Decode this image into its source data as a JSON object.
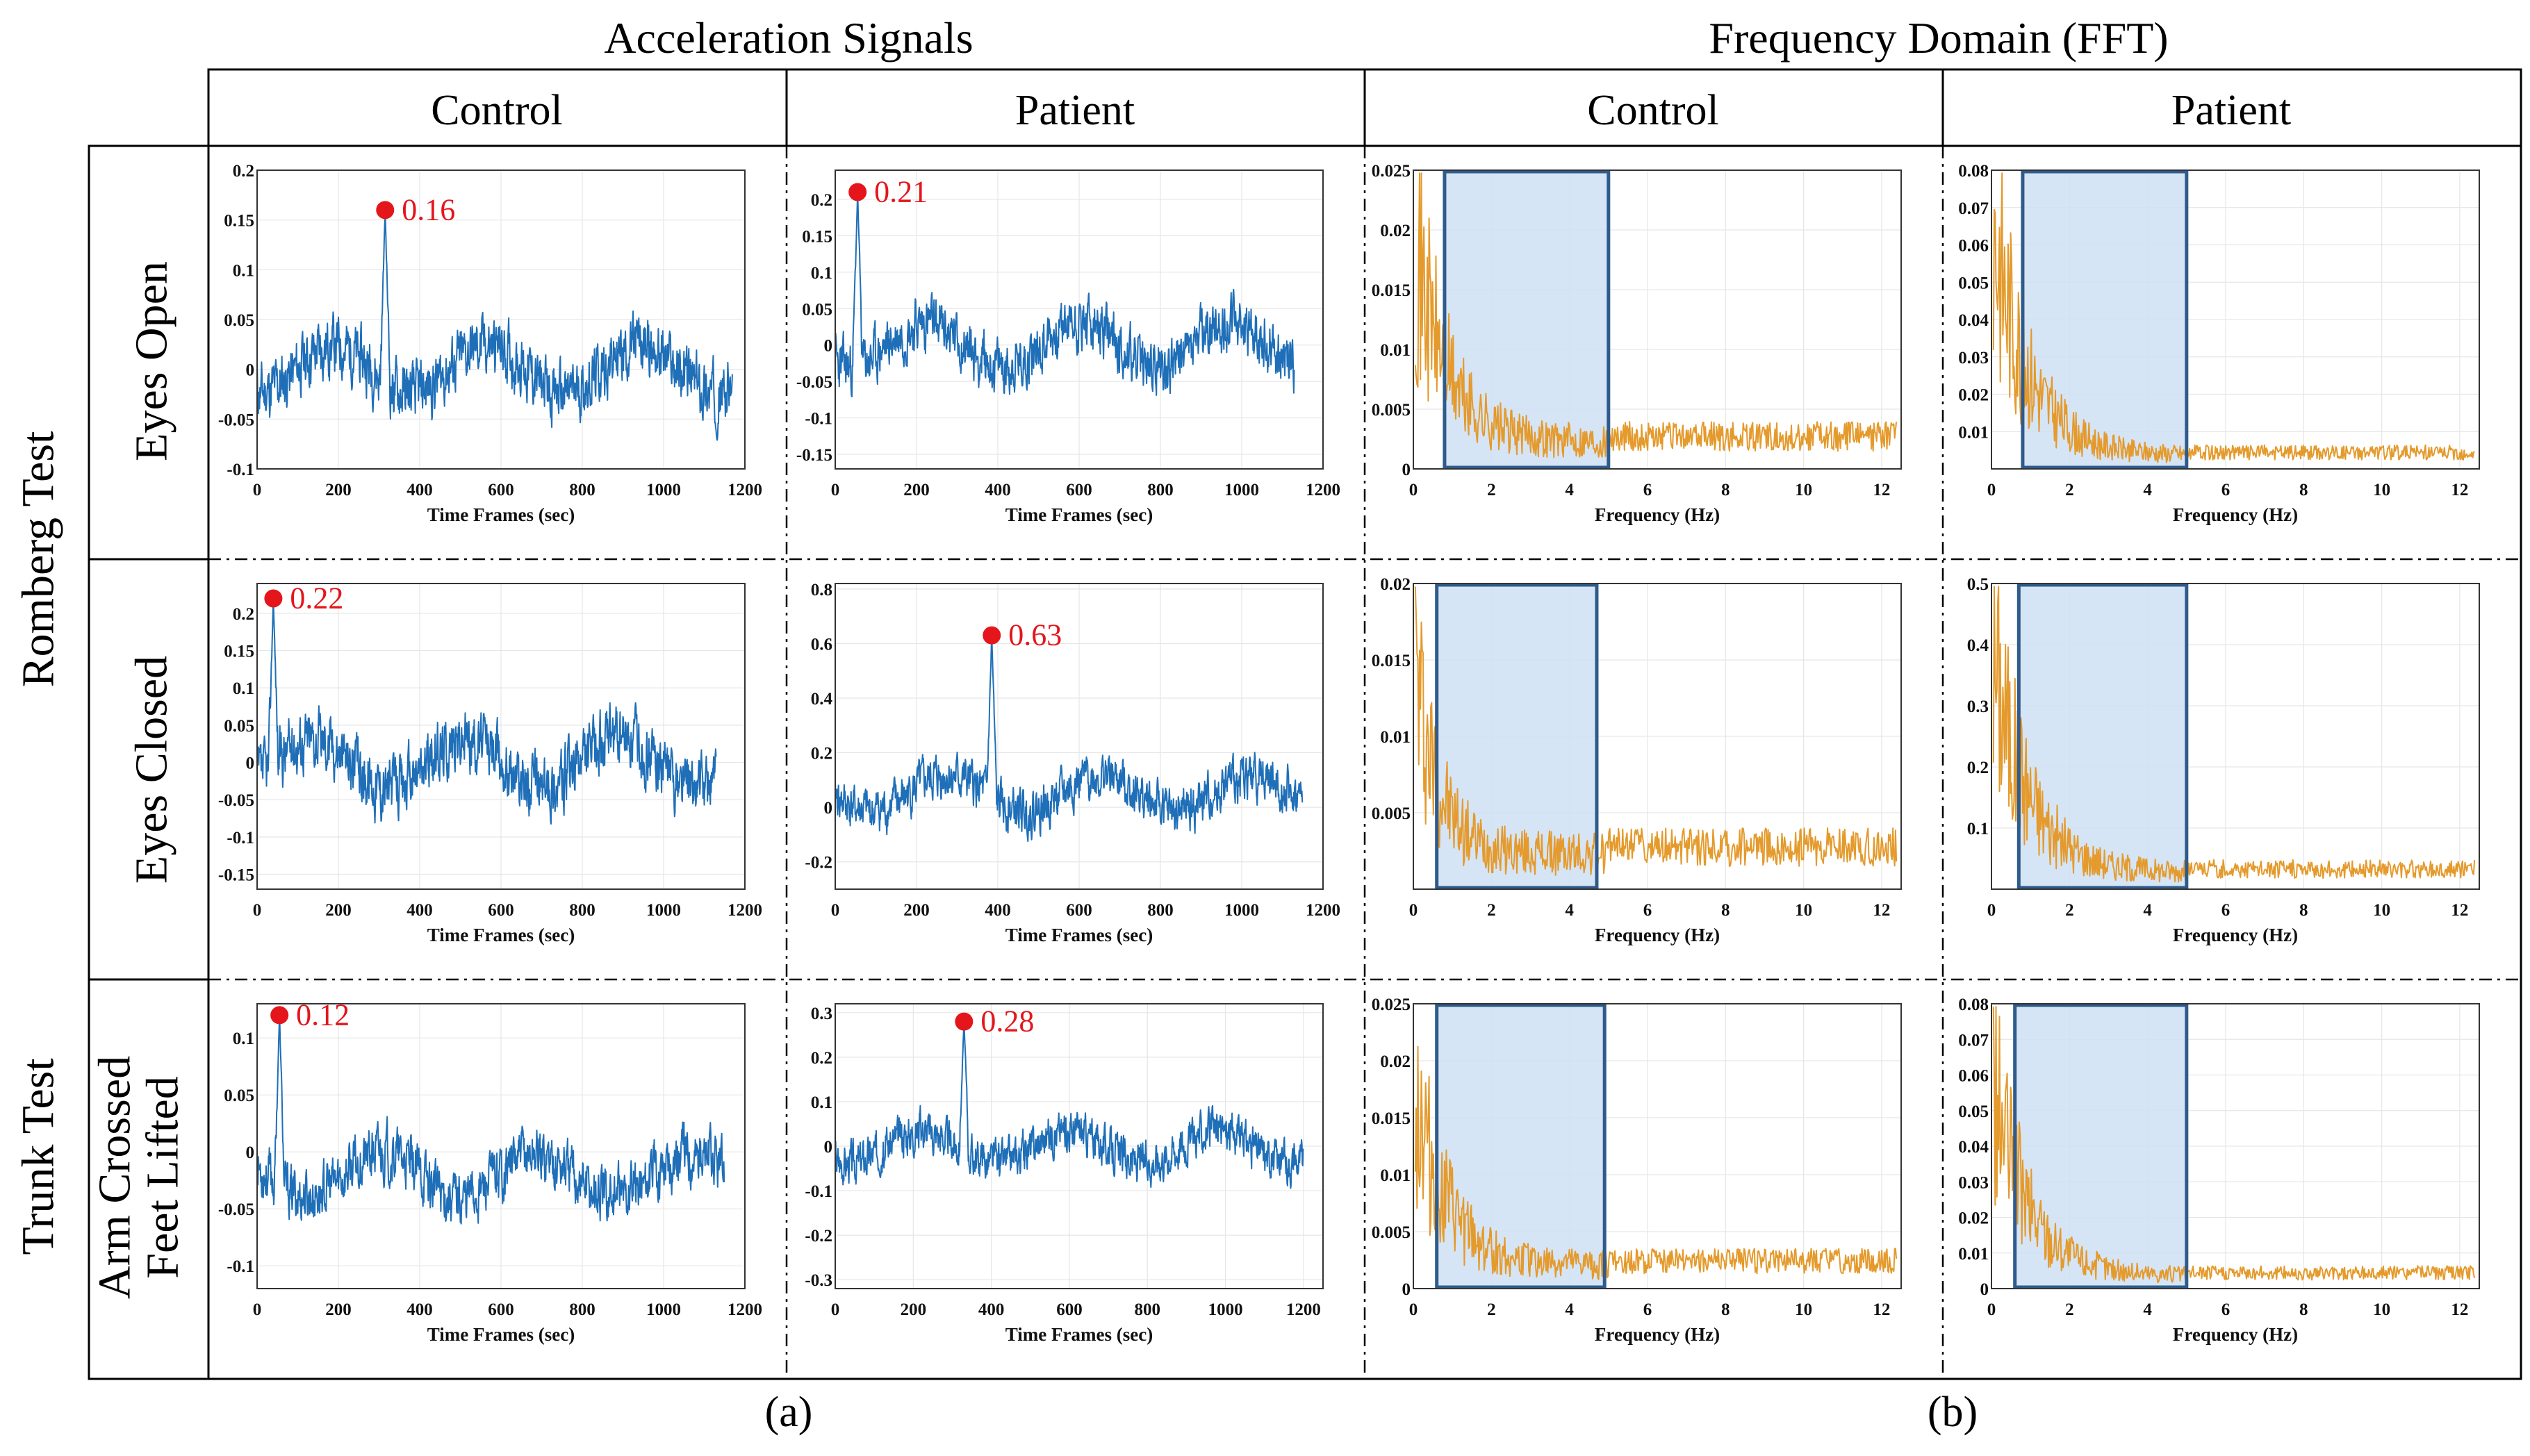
{
  "headers": {
    "acceleration": "Acceleration Signals",
    "frequency": "Frequency Domain (FFT)",
    "columns": [
      "Control",
      "Patient",
      "Control",
      "Patient"
    ]
  },
  "rows": {
    "group_romberg": "Romberg Test",
    "group_trunk": "Trunk Test",
    "eyes_open": "Eyes Open",
    "eyes_closed": "Eyes Closed",
    "arm_crossed": "Arm Crossed",
    "feet_lifted": "Feet Lifted"
  },
  "captions": {
    "a": "(a)",
    "b": "(b)"
  },
  "colors": {
    "time_series": "#1f6fb8",
    "fft": "#e49a2c",
    "highlight_fill": "#cfe0f3",
    "highlight_stroke": "#2e5b8c",
    "peak": "#e4161b"
  },
  "chart_data": [
    {
      "id": "acc_eo_control",
      "type": "line",
      "group": "time",
      "row": 0,
      "col": 0,
      "xlabel": "Time Frames (sec)",
      "ylabel": "",
      "xlim": [
        0,
        1200
      ],
      "ylim": [
        -0.1,
        0.2
      ],
      "xticks": [
        0,
        200,
        400,
        600,
        800,
        1000,
        1200
      ],
      "xtick_labels": [
        "0",
        "200",
        "400",
        "600",
        "800",
        "1000",
        "1200"
      ],
      "yticks": [
        -0.1,
        -0.05,
        0,
        0.05,
        0.1,
        0.15,
        0.2
      ],
      "ytick_labels": [
        "-0.1",
        "-0.05",
        "0",
        "0.05",
        "0.1",
        "0.15",
        "0.2"
      ],
      "series": [
        {
          "name": "acceleration",
          "n": 1170,
          "mean": 0.0,
          "amp": 0.04,
          "spike_at": 315,
          "spike_val": 0.16,
          "seed": 11
        }
      ],
      "peak": {
        "x": 315,
        "y": 0.16,
        "label": "0.16"
      }
    },
    {
      "id": "acc_eo_patient",
      "type": "line",
      "group": "time",
      "row": 0,
      "col": 1,
      "xlabel": "Time Frames (sec)",
      "ylabel": "",
      "xlim": [
        0,
        1200
      ],
      "ylim": [
        -0.17,
        0.24
      ],
      "xticks": [
        0,
        200,
        400,
        600,
        800,
        1000,
        1200
      ],
      "xtick_labels": [
        "0",
        "200",
        "400",
        "600",
        "800",
        "1000",
        "1200"
      ],
      "yticks": [
        -0.15,
        -0.1,
        -0.05,
        0,
        0.05,
        0.1,
        0.15,
        0.2
      ],
      "ytick_labels": [
        "-0.15",
        "-0.1",
        "-0.05",
        "0",
        "0.05",
        "0.1",
        "0.15",
        "0.2"
      ],
      "series": [
        {
          "name": "acceleration",
          "n": 1130,
          "mean": 0.0,
          "amp": 0.05,
          "spike_at": 55,
          "spike_val": 0.21,
          "seed": 23
        }
      ],
      "peak": {
        "x": 55,
        "y": 0.21,
        "label": "0.21"
      }
    },
    {
      "id": "acc_ec_control",
      "type": "line",
      "group": "time",
      "row": 1,
      "col": 0,
      "xlabel": "Time Frames (sec)",
      "ylabel": "",
      "xlim": [
        0,
        1200
      ],
      "ylim": [
        -0.17,
        0.24
      ],
      "xticks": [
        0,
        200,
        400,
        600,
        800,
        1000,
        1200
      ],
      "xtick_labels": [
        "0",
        "200",
        "400",
        "600",
        "800",
        "1000",
        "1200"
      ],
      "yticks": [
        -0.15,
        -0.1,
        -0.05,
        0,
        0.05,
        0.1,
        0.15,
        0.2
      ],
      "ytick_labels": [
        "-0.15",
        "-0.1",
        "-0.05",
        "0",
        "0.05",
        "0.1",
        "0.15",
        "0.2"
      ],
      "series": [
        {
          "name": "acceleration",
          "n": 1130,
          "mean": 0.0,
          "amp": 0.055,
          "spike_at": 40,
          "spike_val": 0.22,
          "seed": 37
        }
      ],
      "peak": {
        "x": 40,
        "y": 0.22,
        "label": "0.22"
      }
    },
    {
      "id": "acc_ec_patient",
      "type": "line",
      "group": "time",
      "row": 1,
      "col": 1,
      "xlabel": "Time Frames (sec)",
      "ylabel": "",
      "xlim": [
        0,
        1200
      ],
      "ylim": [
        -0.3,
        0.82
      ],
      "xticks": [
        0,
        200,
        400,
        600,
        800,
        1000,
        1200
      ],
      "xtick_labels": [
        "0",
        "200",
        "400",
        "600",
        "800",
        "1000",
        "1200"
      ],
      "yticks": [
        -0.2,
        0,
        0.2,
        0.4,
        0.6,
        0.8
      ],
      "ytick_labels": [
        "-0.2",
        "0",
        "0.2",
        "0.4",
        "0.6",
        "0.8"
      ],
      "series": [
        {
          "name": "acceleration",
          "n": 1150,
          "mean": 0.05,
          "amp": 0.11,
          "spike_at": 385,
          "spike_val": 0.63,
          "seed": 41
        }
      ],
      "peak": {
        "x": 385,
        "y": 0.63,
        "label": "0.63"
      }
    },
    {
      "id": "acc_tt_control",
      "type": "line",
      "group": "time",
      "row": 2,
      "col": 0,
      "xlabel": "Time Frames (sec)",
      "ylabel": "",
      "xlim": [
        0,
        1200
      ],
      "ylim": [
        -0.12,
        0.13
      ],
      "xticks": [
        0,
        200,
        400,
        600,
        800,
        1000,
        1200
      ],
      "xtick_labels": [
        "0",
        "200",
        "400",
        "600",
        "800",
        "1000",
        "1200"
      ],
      "yticks": [
        -0.1,
        -0.05,
        0,
        0.05,
        0.1
      ],
      "ytick_labels": [
        "-0.1",
        "-0.05",
        "0",
        "0.05",
        "0.1"
      ],
      "series": [
        {
          "name": "acceleration",
          "n": 1150,
          "mean": -0.02,
          "amp": 0.032,
          "spike_at": 55,
          "spike_val": 0.12,
          "seed": 53
        }
      ],
      "peak": {
        "x": 55,
        "y": 0.12,
        "label": "0.12"
      }
    },
    {
      "id": "acc_tt_patient",
      "type": "line",
      "group": "time",
      "row": 2,
      "col": 1,
      "xlabel": "Time Frames (sec)",
      "ylabel": "",
      "xlim": [
        0,
        1250
      ],
      "ylim": [
        -0.32,
        0.32
      ],
      "xticks": [
        0,
        200,
        400,
        600,
        800,
        1000,
        1200
      ],
      "xtick_labels": [
        "0",
        "200",
        "400",
        "600",
        "800",
        "1000",
        "1200"
      ],
      "yticks": [
        -0.3,
        -0.2,
        -0.1,
        0,
        0.1,
        0.2,
        0.3
      ],
      "ytick_labels": [
        "-0.3",
        "-0.2",
        "-0.1",
        "0",
        "0.1",
        "0.2",
        "0.3"
      ],
      "series": [
        {
          "name": "acceleration",
          "n": 1200,
          "mean": 0.0,
          "amp": 0.06,
          "spike_at": 330,
          "spike_val": 0.28,
          "seed": 67
        }
      ],
      "peak": {
        "x": 330,
        "y": 0.28,
        "label": "0.28"
      }
    },
    {
      "id": "fft_eo_control",
      "type": "line",
      "group": "fft",
      "row": 0,
      "col": 2,
      "xlabel": "Frequency (Hz)",
      "ylabel": "",
      "xlim": [
        0,
        12.5
      ],
      "ylim": [
        0,
        0.025
      ],
      "xticks": [
        0,
        2,
        4,
        6,
        8,
        10,
        12
      ],
      "xtick_labels": [
        "0",
        "2",
        "4",
        "6",
        "8",
        "10",
        "12"
      ],
      "yticks": [
        0,
        0.005,
        0.01,
        0.015,
        0.02,
        0.025
      ],
      "ytick_labels": [
        "0",
        "0.005",
        "0.01",
        "0.015",
        "0.02",
        "0.025"
      ],
      "series": [
        {
          "name": "fft",
          "peak0": 0.022,
          "floor": 0.0025,
          "decay": 0.8,
          "seed": 71
        }
      ],
      "highlight": {
        "x": [
          0.8,
          5.0
        ]
      }
    },
    {
      "id": "fft_eo_patient",
      "type": "line",
      "group": "fft",
      "row": 0,
      "col": 3,
      "xlabel": "Frequency (Hz)",
      "ylabel": "",
      "xlim": [
        0,
        12.5
      ],
      "ylim": [
        0,
        0.08
      ],
      "xticks": [
        0,
        2,
        4,
        6,
        8,
        10,
        12
      ],
      "xtick_labels": [
        "0",
        "2",
        "4",
        "6",
        "8",
        "10",
        "12"
      ],
      "yticks": [
        0.01,
        0.02,
        0.03,
        0.04,
        0.05,
        0.06,
        0.07,
        0.08
      ],
      "ytick_labels": [
        "0.01",
        "0.02",
        "0.03",
        "0.04",
        "0.05",
        "0.06",
        "0.07",
        "0.08"
      ],
      "series": [
        {
          "name": "fft",
          "peak0": 0.074,
          "floor": 0.004,
          "decay": 0.9,
          "seed": 83
        }
      ],
      "highlight": {
        "x": [
          0.8,
          5.0
        ]
      }
    },
    {
      "id": "fft_ec_control",
      "type": "line",
      "group": "fft",
      "row": 1,
      "col": 2,
      "xlabel": "Frequency (Hz)",
      "ylabel": "",
      "xlim": [
        0,
        12.5
      ],
      "ylim": [
        0,
        0.02
      ],
      "xticks": [
        0,
        2,
        4,
        6,
        8,
        10,
        12
      ],
      "xtick_labels": [
        "0",
        "2",
        "4",
        "6",
        "8",
        "10",
        "12"
      ],
      "yticks": [
        0.005,
        0.01,
        0.015,
        0.02
      ],
      "ytick_labels": [
        "0.005",
        "0.01",
        "0.015",
        "0.02"
      ],
      "series": [
        {
          "name": "fft",
          "peak0": 0.017,
          "floor": 0.0025,
          "decay": 0.6,
          "seed": 97
        }
      ],
      "highlight": {
        "x": [
          0.6,
          4.7
        ]
      }
    },
    {
      "id": "fft_ec_patient",
      "type": "line",
      "group": "fft",
      "row": 1,
      "col": 3,
      "xlabel": "Frequency (Hz)",
      "ylabel": "",
      "xlim": [
        0,
        12.5
      ],
      "ylim": [
        0,
        0.5
      ],
      "xticks": [
        0,
        2,
        4,
        6,
        8,
        10,
        12
      ],
      "xtick_labels": [
        "0",
        "2",
        "4",
        "6",
        "8",
        "10",
        "12"
      ],
      "yticks": [
        0.1,
        0.2,
        0.3,
        0.4,
        0.5
      ],
      "ytick_labels": [
        "0.1",
        "0.2",
        "0.3",
        "0.4",
        "0.5"
      ],
      "series": [
        {
          "name": "fft",
          "peak0": 0.43,
          "floor": 0.03,
          "decay": 0.9,
          "seed": 101
        }
      ],
      "highlight": {
        "x": [
          0.7,
          5.0
        ]
      }
    },
    {
      "id": "fft_tt_control",
      "type": "line",
      "group": "fft",
      "row": 2,
      "col": 2,
      "xlabel": "Frequency (Hz)",
      "ylabel": "",
      "xlim": [
        0,
        12.5
      ],
      "ylim": [
        0,
        0.025
      ],
      "xticks": [
        0,
        2,
        4,
        6,
        8,
        10,
        12
      ],
      "xtick_labels": [
        "0",
        "2",
        "4",
        "6",
        "8",
        "10",
        "12"
      ],
      "yticks": [
        0,
        0.005,
        0.01,
        0.015,
        0.02,
        0.025
      ],
      "ytick_labels": [
        "0",
        "0.005",
        "0.01",
        "0.015",
        "0.02",
        "0.025"
      ],
      "series": [
        {
          "name": "fft",
          "peak0": 0.02,
          "floor": 0.0022,
          "decay": 0.8,
          "seed": 113
        }
      ],
      "highlight": {
        "x": [
          0.6,
          4.9
        ]
      }
    },
    {
      "id": "fft_tt_patient",
      "type": "line",
      "group": "fft",
      "row": 2,
      "col": 3,
      "xlabel": "Frequency (Hz)",
      "ylabel": "",
      "xlim": [
        0,
        12.5
      ],
      "ylim": [
        0,
        0.08
      ],
      "xticks": [
        0,
        2,
        4,
        6,
        8,
        10,
        12
      ],
      "xtick_labels": [
        "0",
        "2",
        "4",
        "6",
        "8",
        "10",
        "12"
      ],
      "yticks": [
        0,
        0.01,
        0.02,
        0.03,
        0.04,
        0.05,
        0.06,
        0.07,
        0.08
      ],
      "ytick_labels": [
        "0",
        "0.01",
        "0.02",
        "0.03",
        "0.04",
        "0.05",
        "0.06",
        "0.07",
        "0.08"
      ],
      "series": [
        {
          "name": "fft",
          "peak0": 0.064,
          "floor": 0.004,
          "decay": 0.9,
          "seed": 127
        }
      ],
      "highlight": {
        "x": [
          0.6,
          5.0
        ]
      }
    }
  ]
}
